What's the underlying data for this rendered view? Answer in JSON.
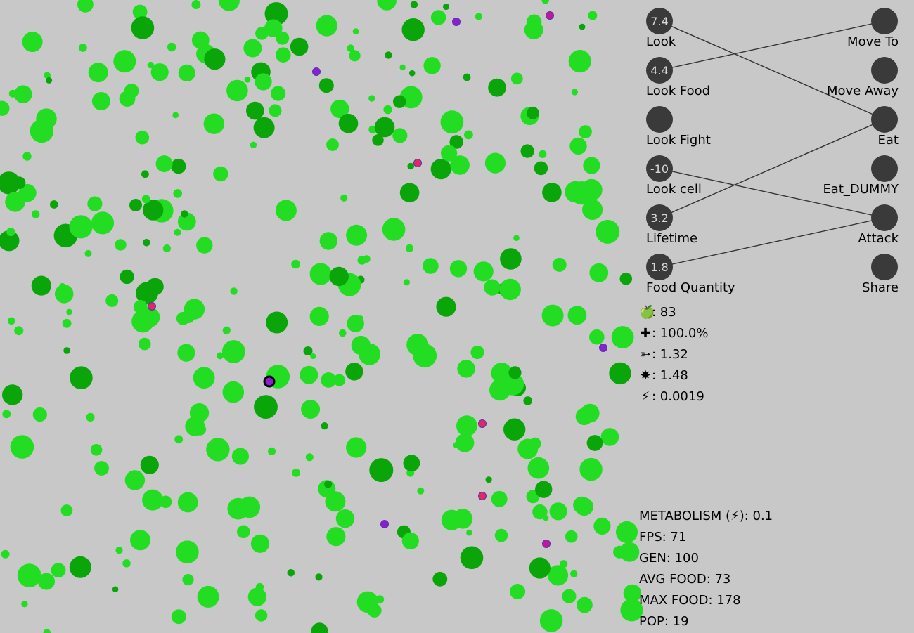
{
  "network": {
    "inputs": [
      {
        "label": "Look",
        "value": "7.4"
      },
      {
        "label": "Look Food",
        "value": "4.4"
      },
      {
        "label": "Look Fight",
        "value": ""
      },
      {
        "label": "Look cell",
        "value": "-10"
      },
      {
        "label": "Lifetime",
        "value": "3.2"
      },
      {
        "label": "Food Quantity",
        "value": "1.8"
      }
    ],
    "outputs": [
      {
        "label": "Move To"
      },
      {
        "label": "Move Away"
      },
      {
        "label": "Eat"
      },
      {
        "label": "Eat_DUMMY"
      },
      {
        "label": "Attack"
      },
      {
        "label": "Share"
      }
    ],
    "connections": [
      [
        0,
        2
      ],
      [
        1,
        0
      ],
      [
        3,
        4
      ],
      [
        4,
        2
      ],
      [
        5,
        4
      ]
    ]
  },
  "cell_stats": [
    {
      "icon": "apple-icon",
      "glyph": "🍏",
      "text": ": 83"
    },
    {
      "icon": "health-cross-icon",
      "glyph": "✚",
      "text": ": 100.0%"
    },
    {
      "icon": "speed-icon",
      "glyph": "➳",
      "text": ": 1.32"
    },
    {
      "icon": "attack-burst-icon",
      "glyph": "✸",
      "text": ": 1.48"
    },
    {
      "icon": "energy-icon",
      "glyph": "⚡",
      "text": ": 0.0019"
    }
  ],
  "simulation": {
    "metabolism": "METABOLISM (⚡): 0.1",
    "fps": "FPS: 71",
    "gen": "GEN: 100",
    "avg_food": "AVG FOOD: 73",
    "max_food": "MAX FOOD: 178",
    "pop": "POP: 19"
  },
  "colors": {
    "background": "#c8c8c8",
    "food_light": "#22dd22",
    "food_dark": "#09a509",
    "node": "#3a3a3a",
    "creature_purple": "#8a1fd0",
    "creature_magenta": "#c0189c",
    "creature_pink": "#e02868"
  }
}
